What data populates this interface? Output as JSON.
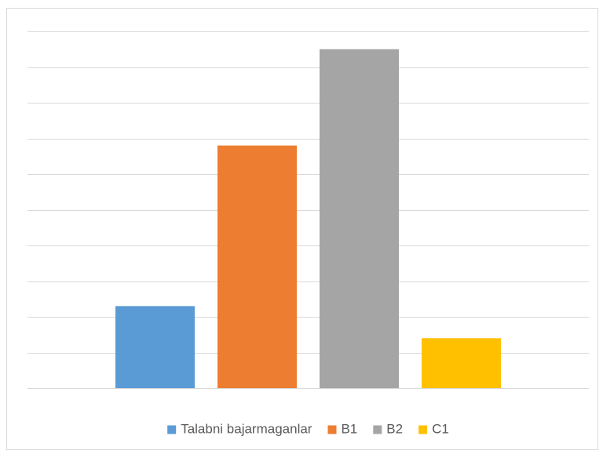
{
  "chart_data": {
    "type": "bar",
    "categories": [
      null
    ],
    "series": [
      {
        "name": "Talabni bajarmaganlar",
        "color": "#5b9bd5",
        "values": [
          2.3
        ]
      },
      {
        "name": "B1",
        "color": "#ed7d31",
        "values": [
          6.8
        ]
      },
      {
        "name": "B2",
        "color": "#a5a5a5",
        "values": [
          9.5
        ]
      },
      {
        "name": "C1",
        "color": "#ffc000",
        "values": [
          1.4
        ]
      }
    ],
    "ylim": [
      0,
      10
    ],
    "yticks": [
      0,
      1,
      2,
      3,
      4,
      5,
      6,
      7,
      8,
      9,
      10
    ],
    "grid": true,
    "legend": "bottom"
  }
}
